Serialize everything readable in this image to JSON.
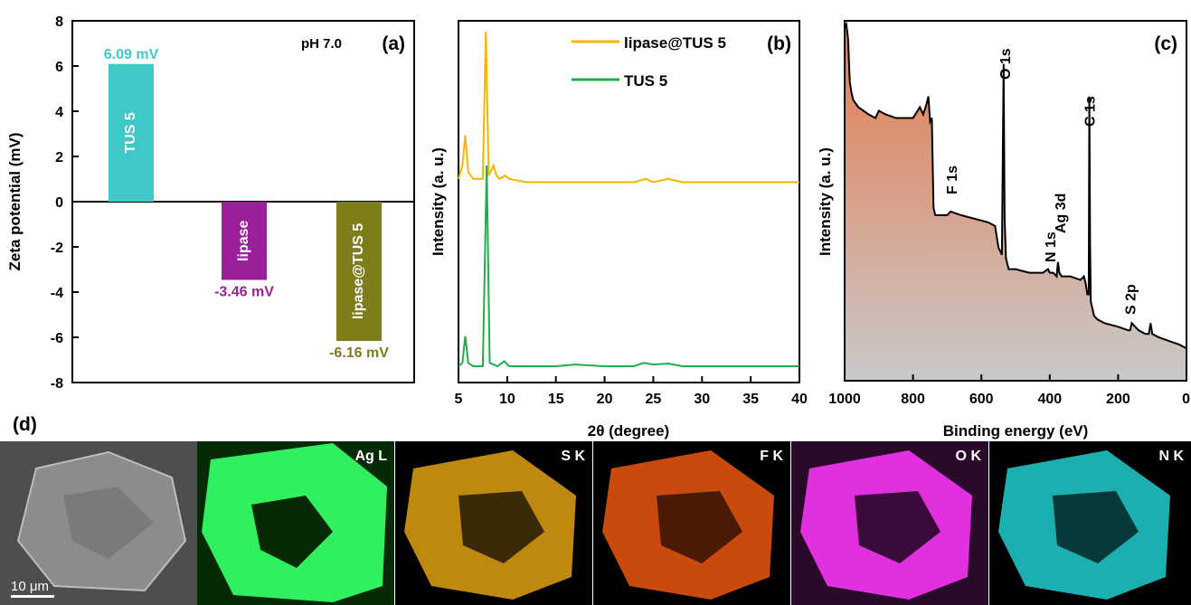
{
  "chart_data": [
    {
      "type": "bar",
      "panel_label": "(a)",
      "annotation": "pH 7.0",
      "ylabel": "Zeta potential (mV)",
      "ylim": [
        -8,
        8
      ],
      "yticks": [
        "8",
        "6",
        "4",
        "2",
        "0",
        "-2",
        "-4",
        "-6",
        "-8"
      ],
      "categories": [
        "TUS 5",
        "lipase",
        "lipase@TUS 5"
      ],
      "values": [
        6.09,
        -3.46,
        -6.16
      ],
      "value_labels": [
        "6.09 mV",
        "-3.46 mV",
        "-6.16 mV"
      ],
      "colors": [
        "#3ec8c8",
        "#9b1f9b",
        "#7d7d1a"
      ]
    },
    {
      "type": "line",
      "panel_label": "(b)",
      "xlabel": "2θ (degree)",
      "ylabel": "Intensity (a. u.)",
      "xlim": [
        5,
        40
      ],
      "xticks": [
        "5",
        "10",
        "15",
        "20",
        "25",
        "30",
        "35",
        "40"
      ],
      "series": [
        {
          "name": "lipase@TUS 5",
          "color": "#f7b500",
          "x": [
            5,
            5.4,
            5.7,
            6.0,
            6.5,
            7.5,
            7.8,
            8.1,
            8.6,
            8.9,
            9.2,
            9.8,
            10.2,
            12,
            15,
            18,
            20,
            23,
            24.2,
            25,
            26.5,
            28,
            30,
            32,
            35,
            38,
            40
          ],
          "y": [
            0.56,
            0.6,
            0.69,
            0.58,
            0.56,
            0.56,
            1.0,
            0.57,
            0.6,
            0.57,
            0.56,
            0.57,
            0.56,
            0.55,
            0.55,
            0.55,
            0.55,
            0.55,
            0.56,
            0.55,
            0.56,
            0.55,
            0.55,
            0.55,
            0.55,
            0.55,
            0.55
          ]
        },
        {
          "name": "TUS 5",
          "color": "#1fae4a",
          "x": [
            5,
            5.4,
            5.7,
            6.0,
            6.5,
            7.5,
            7.9,
            8.2,
            9.0,
            9.7,
            10.2,
            12,
            15,
            17,
            20,
            23,
            24,
            25,
            26.5,
            28,
            30,
            32,
            35,
            38,
            40
          ],
          "y": [
            0.0,
            0.01,
            0.09,
            0.01,
            0.0,
            0.0,
            0.6,
            0.01,
            0.0,
            0.015,
            0.0,
            0.0,
            0.0,
            0.005,
            0.0,
            0.0,
            0.01,
            0.005,
            0.008,
            0.0,
            0.0,
            0.0,
            0.0,
            0.0,
            0.0
          ]
        }
      ]
    },
    {
      "type": "area",
      "panel_label": "(c)",
      "xlabel": "Binding energy (eV)",
      "ylabel": "Intensity (a. u.)",
      "xlim": [
        1000,
        0
      ],
      "xticks": [
        "1000",
        "800",
        "600",
        "400",
        "200",
        "0"
      ],
      "fill_colors": [
        "#e57b4f",
        "#c9c9c9"
      ],
      "x": [
        1000,
        995,
        990,
        985,
        980,
        975,
        960,
        930,
        910,
        900,
        880,
        850,
        800,
        780,
        770,
        760,
        755,
        750,
        745,
        740,
        735,
        700,
        690,
        660,
        620,
        580,
        560,
        550,
        545,
        540,
        535,
        532,
        528,
        520,
        500,
        460,
        420,
        405,
        400,
        390,
        380,
        376,
        372,
        365,
        340,
        310,
        300,
        295,
        290,
        286,
        284,
        282,
        280,
        275,
        270,
        260,
        240,
        200,
        170,
        165,
        160,
        140,
        120,
        110,
        105,
        100,
        80,
        50,
        20,
        0
      ],
      "y": [
        0.98,
        0.99,
        0.95,
        0.83,
        0.8,
        0.78,
        0.76,
        0.74,
        0.73,
        0.75,
        0.74,
        0.73,
        0.73,
        0.76,
        0.74,
        0.77,
        0.79,
        0.72,
        0.73,
        0.48,
        0.46,
        0.46,
        0.47,
        0.46,
        0.45,
        0.44,
        0.43,
        0.37,
        0.36,
        0.35,
        0.88,
        0.45,
        0.34,
        0.31,
        0.31,
        0.3,
        0.3,
        0.31,
        0.3,
        0.3,
        0.29,
        0.33,
        0.3,
        0.29,
        0.29,
        0.28,
        0.29,
        0.27,
        0.24,
        0.24,
        0.79,
        0.38,
        0.22,
        0.2,
        0.18,
        0.17,
        0.16,
        0.15,
        0.14,
        0.14,
        0.16,
        0.14,
        0.13,
        0.13,
        0.16,
        0.13,
        0.12,
        0.11,
        0.1,
        0.09
      ],
      "peak_labels": [
        {
          "text": "O 1s",
          "x": 532
        },
        {
          "text": "C 1s",
          "x": 284
        },
        {
          "text": "F 1s",
          "x": 688
        },
        {
          "text": "N 1s",
          "x": 400
        },
        {
          "text": "Ag 3d",
          "x": 370
        },
        {
          "text": "S 2p",
          "x": 165
        }
      ]
    }
  ],
  "mapping": {
    "panel_label": "(d)",
    "scale_bar": "10 μm",
    "tiles": [
      {
        "label": "",
        "color": "#8c8c8c"
      },
      {
        "label": "Ag L",
        "color": "#30f060"
      },
      {
        "label": "S K",
        "color": "#e0a010"
      },
      {
        "label": "F K",
        "color": "#e0520e"
      },
      {
        "label": "O K",
        "color": "#e030e0"
      },
      {
        "label": "N K",
        "color": "#1fc2c2"
      }
    ]
  }
}
